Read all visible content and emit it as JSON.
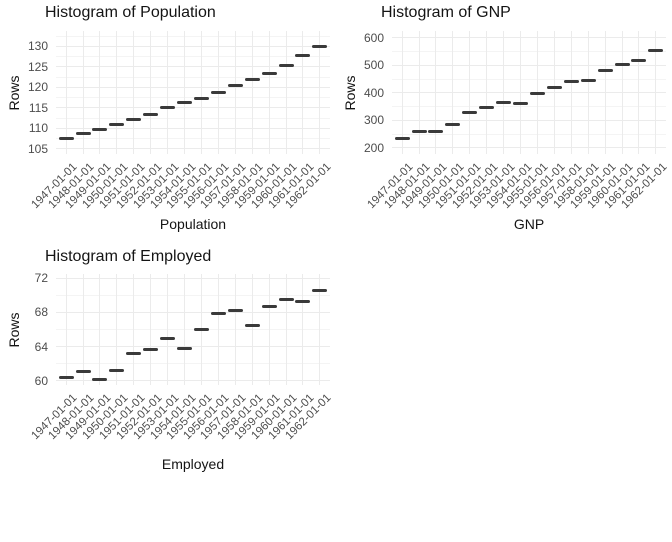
{
  "page": {
    "background": "#ffffff"
  },
  "colors": {
    "grid_major": "#ebebeb",
    "grid_minor": "#f4f4f4",
    "mark": "#3a3a3a",
    "tick_text": "#4d4d4d",
    "title_text": "#141414"
  },
  "chart_data": [
    {
      "type": "scatter",
      "marker": "horizontal-dash",
      "title": "Histogram of Population",
      "xlabel": "Population",
      "ylabel": "Rows",
      "legend": "none",
      "grid": "major+minor",
      "xtick_angle": 45,
      "categories": [
        "1947-01-01",
        "1948-01-01",
        "1949-01-01",
        "1950-01-01",
        "1951-01-01",
        "1952-01-01",
        "1953-01-01",
        "1954-01-01",
        "1955-01-01",
        "1956-01-01",
        "1957-01-01",
        "1958-01-01",
        "1959-01-01",
        "1960-01-01",
        "1961-01-01",
        "1962-01-01"
      ],
      "values": [
        107.608,
        108.632,
        109.773,
        110.929,
        112.075,
        113.27,
        115.094,
        116.219,
        117.388,
        118.734,
        120.445,
        121.95,
        123.366,
        125.368,
        127.852,
        130.081
      ],
      "yticks": [
        105,
        110,
        115,
        120,
        125,
        130
      ],
      "yticks_minor": [
        107.5,
        112.5,
        117.5,
        122.5,
        127.5,
        132.5
      ],
      "ylim": [
        103.75,
        133.75
      ]
    },
    {
      "type": "scatter",
      "marker": "horizontal-dash",
      "title": "Histogram of GNP",
      "xlabel": "GNP",
      "ylabel": "Rows",
      "legend": "none",
      "grid": "major+minor",
      "xtick_angle": 45,
      "categories": [
        "1947-01-01",
        "1948-01-01",
        "1949-01-01",
        "1950-01-01",
        "1951-01-01",
        "1952-01-01",
        "1953-01-01",
        "1954-01-01",
        "1955-01-01",
        "1956-01-01",
        "1957-01-01",
        "1958-01-01",
        "1959-01-01",
        "1960-01-01",
        "1961-01-01",
        "1962-01-01"
      ],
      "values": [
        234.289,
        259.426,
        258.054,
        284.599,
        328.975,
        346.999,
        365.385,
        363.112,
        397.469,
        419.18,
        442.769,
        444.546,
        482.704,
        502.601,
        518.173,
        554.894
      ],
      "yticks": [
        200,
        300,
        400,
        500,
        600
      ],
      "yticks_minor": [
        250,
        350,
        450,
        550
      ],
      "ylim": [
        178,
        625
      ]
    },
    {
      "type": "scatter",
      "marker": "horizontal-dash",
      "title": "Histogram of Employed",
      "xlabel": "Employed",
      "ylabel": "Rows",
      "legend": "none",
      "grid": "major+minor",
      "xtick_angle": 45,
      "categories": [
        "1947-01-01",
        "1948-01-01",
        "1949-01-01",
        "1950-01-01",
        "1951-01-01",
        "1952-01-01",
        "1953-01-01",
        "1954-01-01",
        "1955-01-01",
        "1956-01-01",
        "1957-01-01",
        "1958-01-01",
        "1959-01-01",
        "1960-01-01",
        "1961-01-01",
        "1962-01-01"
      ],
      "values": [
        60.323,
        61.122,
        60.171,
        61.187,
        63.221,
        63.639,
        64.989,
        63.761,
        66.019,
        67.857,
        68.169,
        66.513,
        68.655,
        69.564,
        69.331,
        70.551
      ],
      "yticks": [
        60,
        64,
        68,
        72
      ],
      "yticks_minor": [
        62,
        66,
        70
      ],
      "ylim": [
        59.5,
        72.5
      ]
    }
  ]
}
